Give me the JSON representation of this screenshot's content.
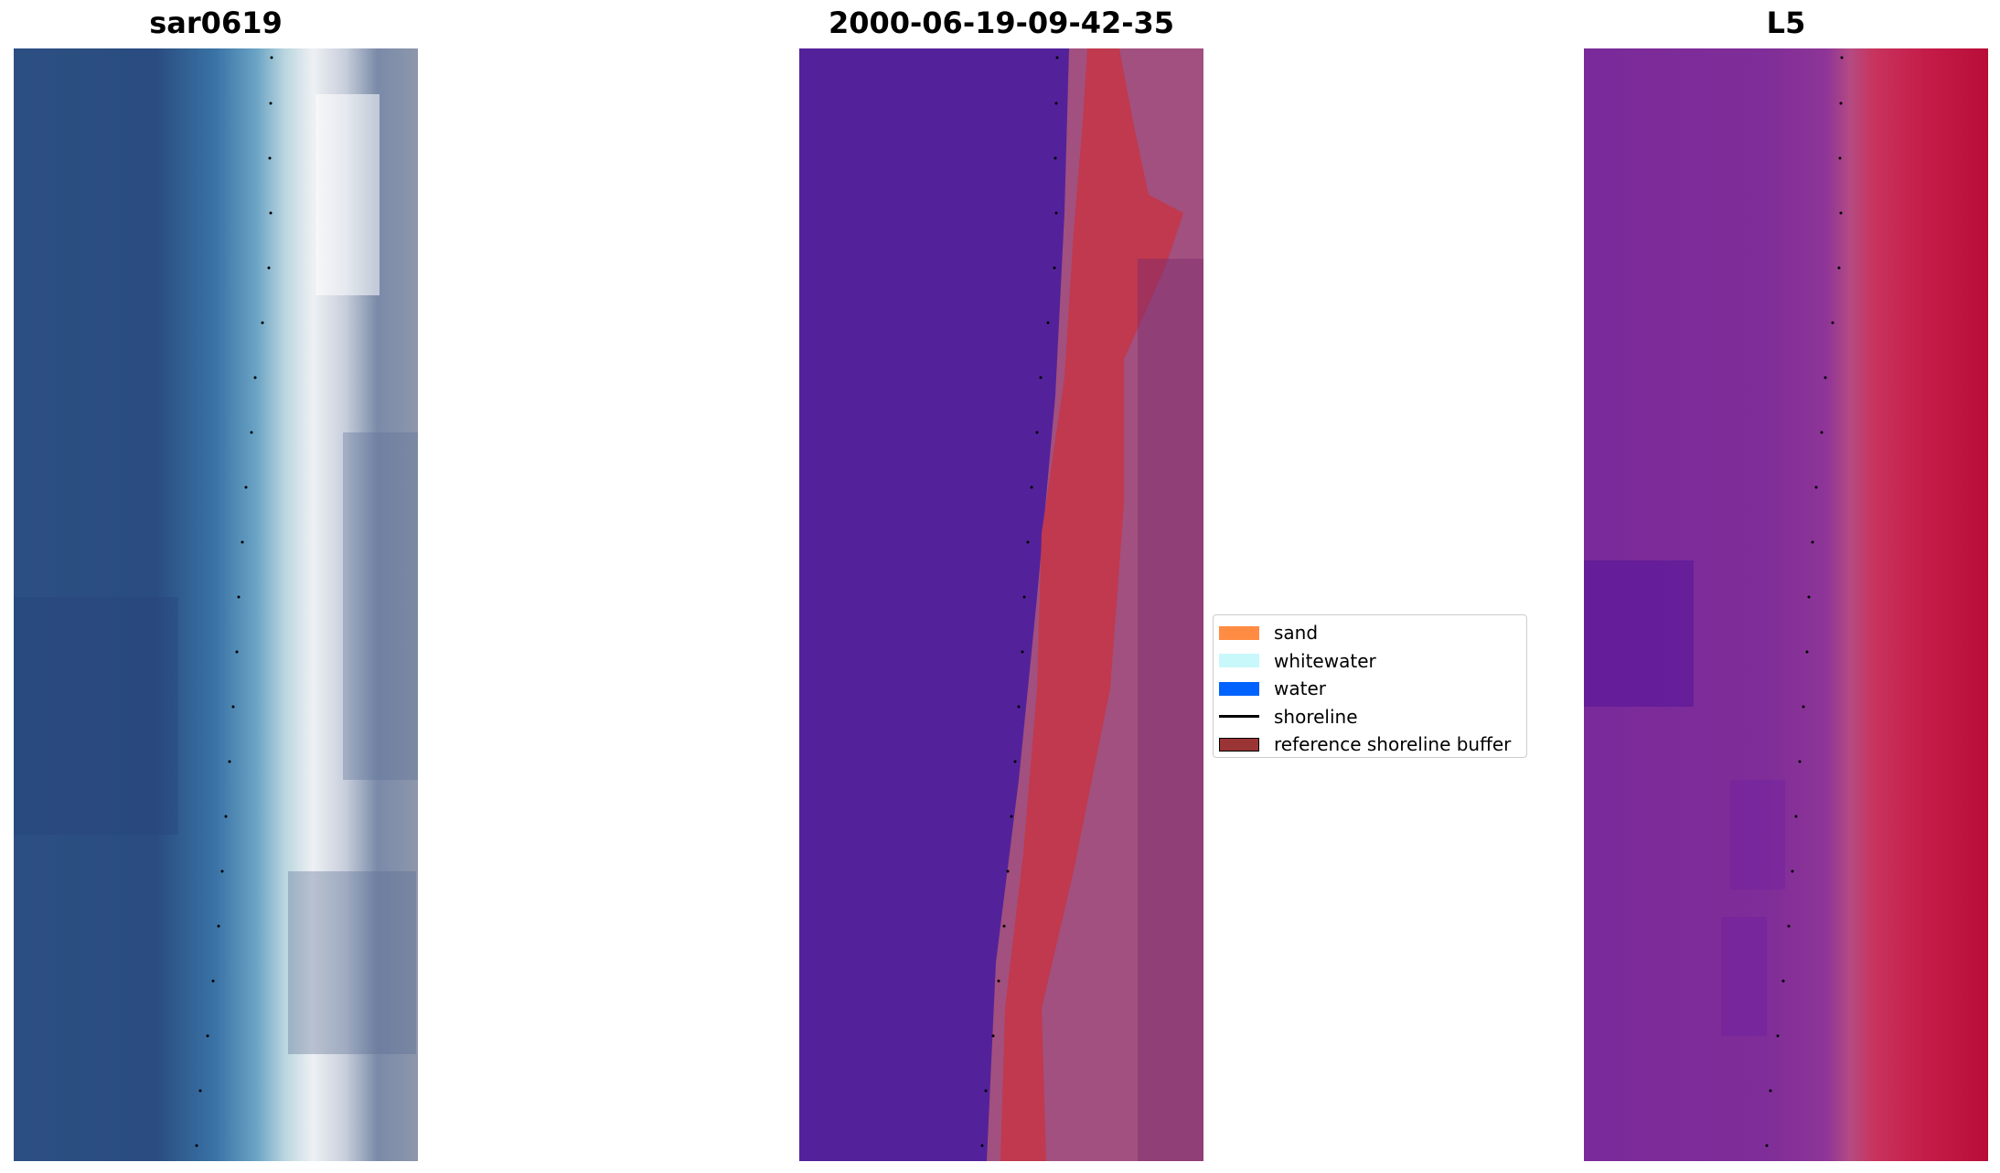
{
  "panels": {
    "rgb_title": "sar0619",
    "classified_title": "2000-06-19-09-42-35",
    "index_title": "L5"
  },
  "legend": {
    "items": [
      {
        "label": "sand",
        "color": "#ff8c42",
        "kind": "swatch"
      },
      {
        "label": "whitewater",
        "color": "#c9f8fb",
        "kind": "swatch"
      },
      {
        "label": "water",
        "color": "#0062ff",
        "kind": "swatch"
      },
      {
        "label": "shoreline",
        "color": "#000000",
        "kind": "line"
      },
      {
        "label": "reference shoreline buffer",
        "color": "#9b3434",
        "kind": "swatch"
      }
    ]
  },
  "colors": {
    "deep_water": "#28447a",
    "classified_water": "#53229b",
    "classified_sand": "#c0394e",
    "buffer_tint": "#a2507f",
    "index_purple": "#7a2a9a",
    "index_red": "#c4143f"
  }
}
